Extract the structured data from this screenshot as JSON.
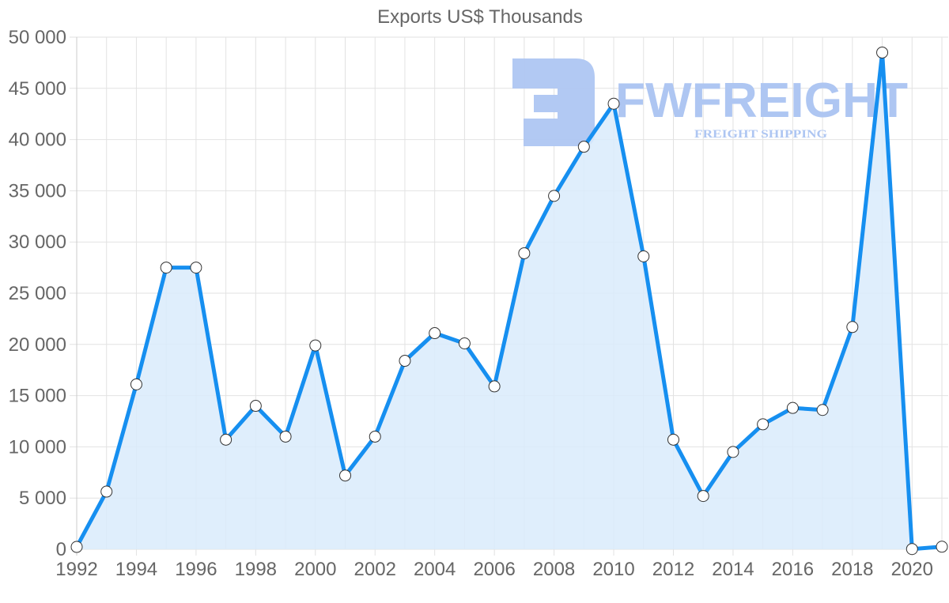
{
  "chart_data": {
    "type": "line",
    "title": "Exports US$ Thousands",
    "xlabel": "",
    "ylabel": "",
    "fill": true,
    "grid": true,
    "legend": null,
    "ylim": [
      0,
      50000
    ],
    "yticks": [
      "0",
      "5 000",
      "10 000",
      "15 000",
      "20 000",
      "25 000",
      "30 000",
      "35 000",
      "40 000",
      "45 000",
      "50 000"
    ],
    "xticks": [
      "1992",
      "1994",
      "1996",
      "1998",
      "2000",
      "2002",
      "2004",
      "2006",
      "2008",
      "2010",
      "2012",
      "2014",
      "2016",
      "2018",
      "2020"
    ],
    "x": [
      1992,
      1993,
      1994,
      1995,
      1996,
      1997,
      1998,
      1999,
      2000,
      2001,
      2002,
      2003,
      2004,
      2005,
      2006,
      2007,
      2008,
      2009,
      2010,
      2011,
      2012,
      2013,
      2014,
      2015,
      2016,
      2017,
      2018,
      2019,
      2020,
      2021
    ],
    "series": [
      {
        "name": "Exports US$ Thousands",
        "color": "#168ff0",
        "fill_color": "#d9ebfc",
        "values": [
          230,
          5630,
          16100,
          27500,
          27500,
          10700,
          14000,
          11000,
          19900,
          7200,
          11000,
          18400,
          21100,
          20100,
          15900,
          28900,
          34500,
          39300,
          43500,
          28600,
          10700,
          5200,
          9500,
          12200,
          13800,
          13600,
          21700,
          48500,
          20,
          250
        ]
      }
    ]
  },
  "watermark": {
    "brand": "FWFREIGHT",
    "tagline": "FREIGHT SHIPPING",
    "color": "#aec6f2"
  }
}
